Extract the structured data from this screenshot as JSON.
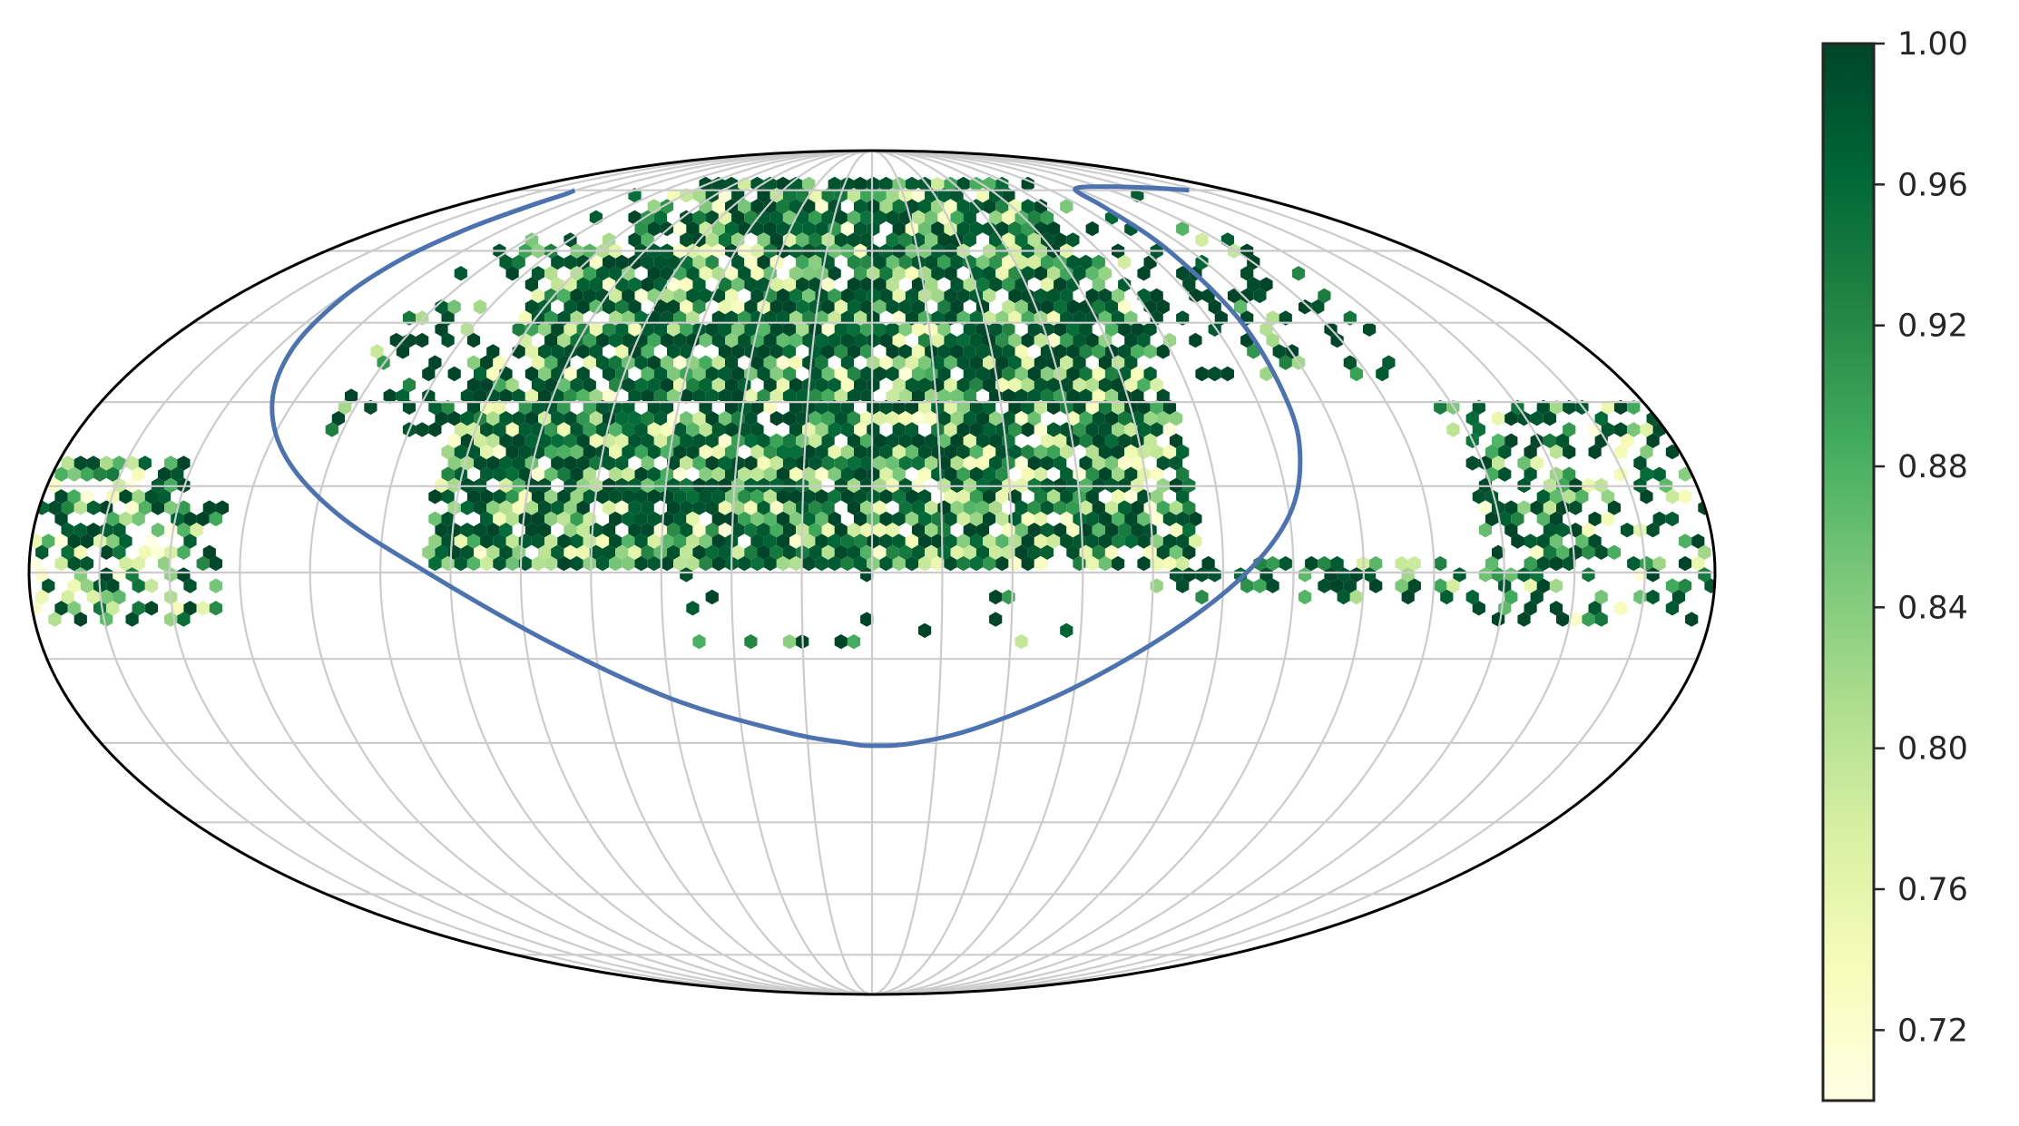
{
  "chart_data": {
    "type": "heatmap",
    "projection": "mollweide",
    "grid": true,
    "colormap": {
      "name": "YlGn",
      "stops": [
        "#ffffe5",
        "#f7fcb9",
        "#d9f0a3",
        "#addd8e",
        "#78c679",
        "#41ab5d",
        "#238443",
        "#006837",
        "#004529"
      ]
    },
    "colorbar": {
      "range": [
        0.7,
        1.0
      ],
      "tick_values": [
        0.72,
        0.76,
        0.8,
        0.84,
        0.88,
        0.92,
        0.96,
        1.0
      ],
      "tick_labels": [
        "0.72",
        "0.76",
        "0.80",
        "0.84",
        "0.88",
        "0.92",
        "0.96",
        "1.00"
      ],
      "placement": "right"
    },
    "outline_color": "#000000",
    "grid_color": "#cccccc",
    "curve_color": "#4c72b0",
    "graticule": {
      "meridians_deg": [
        -165,
        -150,
        -135,
        -120,
        -105,
        -90,
        -75,
        -60,
        -45,
        -30,
        -15,
        0,
        15,
        30,
        45,
        60,
        75,
        90,
        105,
        120,
        135,
        150,
        165
      ],
      "parallels_deg": [
        -75,
        -60,
        -45,
        -30,
        -15,
        0,
        15,
        30,
        45,
        60,
        75
      ]
    },
    "curve": {
      "lon": [
        -150,
        -148,
        -147.5,
        -149,
        -150,
        -149,
        -146,
        -140,
        -130,
        -115,
        -95,
        -70,
        -45,
        -20,
        -6,
        0,
        10,
        25,
        45,
        65,
        80,
        90,
        95,
        97,
        98,
        98,
        99,
        101,
        105,
        115,
        130,
        150,
        160
      ],
      "lat": [
        75,
        74,
        71,
        65,
        58,
        50,
        40,
        30,
        20,
        10,
        0,
        -12,
        -22,
        -28,
        -30,
        -30.5,
        -30,
        -27,
        -20,
        -10,
        0,
        10,
        20,
        30,
        45,
        60,
        70,
        74,
        75.5,
        76,
        76,
        75.5,
        75
      ]
    },
    "hex_density": [
      {
        "lon_range": [
          -95,
          70
        ],
        "lat_range": [
          0,
          78
        ],
        "value_mean": 0.88,
        "coverage": 0.92
      },
      {
        "lon_range": [
          -125,
          -95
        ],
        "lat_range": [
          25,
          78
        ],
        "value_mean": 0.93,
        "coverage": 0.3
      },
      {
        "lon_range": [
          70,
          130
        ],
        "lat_range": [
          35,
          78
        ],
        "value_mean": 0.95,
        "coverage": 0.25
      },
      {
        "lon_range": [
          -180,
          -150
        ],
        "lat_range": [
          -10,
          20
        ],
        "value_mean": 0.86,
        "coverage": 0.65
      },
      {
        "lon_range": [
          -180,
          -140
        ],
        "lat_range": [
          -10,
          12
        ],
        "value_mean": 0.9,
        "coverage": 0.55
      },
      {
        "lon_range": [
          130,
          180
        ],
        "lat_range": [
          -10,
          30
        ],
        "value_mean": 0.88,
        "coverage": 0.45
      },
      {
        "lon_range": [
          60,
          180
        ],
        "lat_range": [
          -6,
          3
        ],
        "value_mean": 0.94,
        "coverage": 0.45
      },
      {
        "lon_range": [
          -50,
          50
        ],
        "lat_range": [
          -12,
          0
        ],
        "value_mean": 0.96,
        "coverage": 0.08
      }
    ]
  }
}
